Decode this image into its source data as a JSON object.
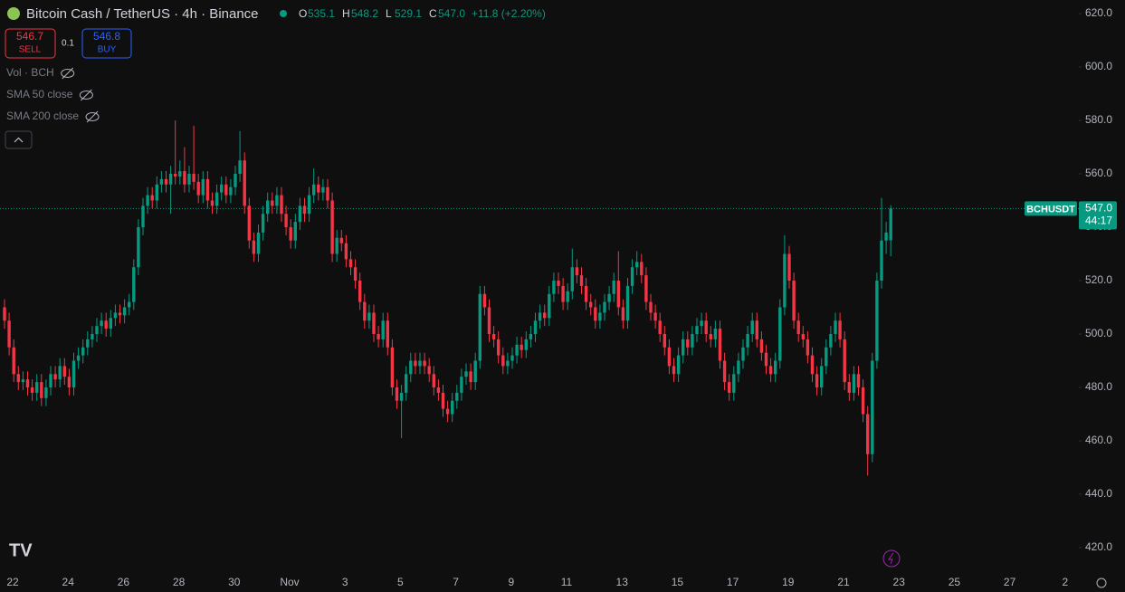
{
  "chart_data": {
    "type": "candlestick",
    "title": "Bitcoin Cash / TetherUS · 4h · Binance",
    "ohlc_legend": [
      {
        "label": "O",
        "value": "535.1"
      },
      {
        "label": "H",
        "value": "548.2"
      },
      {
        "label": "L",
        "value": "529.1"
      },
      {
        "label": "C",
        "value": "547.0"
      }
    ],
    "change": "+11.8 (+2.20%)",
    "sell": {
      "price": "546.7",
      "label": "SELL"
    },
    "spread": "0.1",
    "buy": {
      "price": "546.8",
      "label": "BUY"
    },
    "indicators": [
      "Vol · BCH",
      "SMA 50 close",
      "SMA 200 close"
    ],
    "symbol": "BCHUSDT",
    "last_price": {
      "value": 547.0,
      "label": "547.0"
    },
    "countdown": "44:17",
    "up_color": "#089981",
    "down_color": "#f23645",
    "ylim": [
      420,
      620
    ],
    "yticks": [
      {
        "value": 420,
        "label": "420.0"
      },
      {
        "value": 440,
        "label": "440.0"
      },
      {
        "value": 460,
        "label": "460.0"
      },
      {
        "value": 480,
        "label": "480.0"
      },
      {
        "value": 500,
        "label": "500.0"
      },
      {
        "value": 520,
        "label": "520.0"
      },
      {
        "value": 540,
        "label": "540.0"
      },
      {
        "value": 560,
        "label": "560.0"
      },
      {
        "value": 580,
        "label": "580.0"
      },
      {
        "value": 600,
        "label": "600.0"
      },
      {
        "value": 620,
        "label": "620.0"
      }
    ],
    "xticks": [
      "22",
      "24",
      "26",
      "28",
      "30",
      "Nov",
      "3",
      "5",
      "7",
      "9",
      "11",
      "13",
      "15",
      "17",
      "19",
      "21",
      "23",
      "25",
      "27",
      "2"
    ],
    "open": [
      510,
      505,
      495,
      485,
      482,
      483,
      480,
      478,
      482,
      476,
      480,
      485,
      483,
      488,
      484,
      480,
      490,
      492,
      495,
      498,
      500,
      503,
      505,
      502,
      506,
      508,
      507,
      510,
      512,
      525,
      540,
      548,
      552,
      550,
      556,
      558,
      556,
      560,
      559,
      561,
      556,
      560,
      557,
      552,
      558,
      550,
      548,
      553,
      556,
      552,
      555,
      560,
      565,
      548,
      535,
      530,
      538,
      545,
      550,
      548,
      552,
      545,
      540,
      535,
      542,
      548,
      545,
      552,
      556,
      553,
      555,
      550,
      530,
      536,
      534,
      528,
      525,
      520,
      512,
      505,
      508,
      500,
      498,
      505,
      495,
      480,
      475,
      478,
      485,
      490,
      488,
      490,
      488,
      485,
      480,
      478,
      472,
      470,
      475,
      478,
      484,
      486,
      482,
      490,
      515,
      510,
      500,
      498,
      492,
      488,
      490,
      492,
      496,
      494,
      498,
      500,
      505,
      508,
      506,
      515,
      520,
      518,
      512,
      516,
      525,
      522,
      518,
      512,
      510,
      505,
      508,
      512,
      515,
      520,
      510,
      505,
      518,
      525,
      527,
      522,
      512,
      508,
      505,
      500,
      495,
      488,
      485,
      492,
      498,
      495,
      500,
      503,
      505,
      500,
      498,
      502,
      490,
      482,
      478,
      485,
      490,
      495,
      500,
      505,
      498,
      493,
      488,
      485,
      490,
      510,
      530,
      520,
      505,
      500,
      498,
      492,
      485,
      480,
      488,
      495,
      500,
      505,
      498,
      482,
      478,
      485,
      480,
      470,
      455,
      490,
      520,
      535,
      535.1
    ],
    "high": [
      513,
      508,
      498,
      488,
      486,
      486,
      483,
      485,
      485,
      483,
      488,
      488,
      491,
      491,
      487,
      493,
      495,
      498,
      501,
      503,
      506,
      508,
      508,
      509,
      511,
      511,
      513,
      515,
      528,
      543,
      551,
      555,
      555,
      559,
      561,
      561,
      563,
      580,
      565,
      570,
      563,
      578,
      560,
      561,
      561,
      553,
      556,
      559,
      559,
      558,
      563,
      576,
      568,
      551,
      538,
      541,
      548,
      553,
      553,
      555,
      555,
      548,
      543,
      545,
      551,
      551,
      555,
      562,
      559,
      558,
      558,
      553,
      539,
      539,
      537,
      531,
      528,
      523,
      515,
      511,
      511,
      503,
      508,
      508,
      498,
      483,
      481,
      488,
      493,
      493,
      493,
      493,
      491,
      488,
      483,
      481,
      475,
      478,
      481,
      487,
      489,
      489,
      493,
      518,
      518,
      513,
      503,
      501,
      495,
      493,
      495,
      499,
      499,
      501,
      503,
      508,
      511,
      511,
      518,
      523,
      523,
      521,
      519,
      532,
      528,
      525,
      521,
      515,
      513,
      511,
      515,
      518,
      523,
      531,
      513,
      521,
      528,
      531,
      530,
      525,
      515,
      511,
      508,
      503,
      498,
      491,
      495,
      501,
      501,
      503,
      506,
      508,
      508,
      503,
      505,
      505,
      493,
      485,
      488,
      493,
      498,
      503,
      508,
      508,
      501,
      496,
      491,
      493,
      513,
      537,
      533,
      523,
      508,
      503,
      501,
      495,
      488,
      491,
      498,
      503,
      508,
      508,
      501,
      485,
      488,
      488,
      483,
      473,
      493,
      523,
      551,
      542,
      548.2
    ],
    "low": [
      502,
      492,
      482,
      479,
      479,
      477,
      475,
      475,
      473,
      473,
      477,
      480,
      480,
      481,
      477,
      477,
      487,
      489,
      492,
      495,
      497,
      500,
      499,
      499,
      503,
      504,
      504,
      507,
      509,
      522,
      537,
      545,
      547,
      547,
      553,
      553,
      545,
      556,
      556,
      553,
      553,
      554,
      549,
      549,
      547,
      545,
      545,
      550,
      549,
      549,
      552,
      557,
      545,
      532,
      527,
      527,
      535,
      542,
      545,
      545,
      542,
      537,
      532,
      532,
      539,
      542,
      542,
      549,
      550,
      550,
      547,
      527,
      527,
      531,
      525,
      522,
      517,
      509,
      502,
      502,
      497,
      495,
      495,
      492,
      477,
      472,
      461,
      475,
      482,
      485,
      485,
      485,
      482,
      477,
      475,
      469,
      467,
      467,
      472,
      475,
      481,
      479,
      479,
      487,
      507,
      497,
      495,
      489,
      485,
      485,
      487,
      489,
      491,
      491,
      495,
      497,
      502,
      503,
      503,
      512,
      515,
      509,
      509,
      513,
      519,
      515,
      509,
      507,
      502,
      502,
      505,
      509,
      512,
      507,
      502,
      502,
      515,
      522,
      519,
      509,
      505,
      502,
      497,
      492,
      485,
      482,
      482,
      489,
      492,
      492,
      497,
      500,
      497,
      495,
      495,
      487,
      479,
      475,
      475,
      482,
      487,
      492,
      497,
      495,
      490,
      485,
      482,
      482,
      487,
      507,
      517,
      502,
      497,
      495,
      489,
      482,
      477,
      477,
      485,
      492,
      497,
      495,
      479,
      475,
      475,
      477,
      467,
      447,
      452,
      487,
      517,
      530,
      529.1
    ],
    "close": [
      505,
      495,
      485,
      482,
      483,
      480,
      478,
      482,
      476,
      480,
      485,
      483,
      488,
      484,
      480,
      490,
      492,
      495,
      498,
      500,
      503,
      505,
      502,
      506,
      508,
      507,
      510,
      512,
      525,
      540,
      548,
      552,
      550,
      556,
      558,
      556,
      560,
      559,
      561,
      556,
      560,
      557,
      552,
      558,
      550,
      548,
      553,
      556,
      552,
      555,
      560,
      565,
      548,
      535,
      530,
      538,
      545,
      550,
      548,
      552,
      545,
      540,
      535,
      542,
      548,
      545,
      552,
      556,
      553,
      555,
      550,
      530,
      536,
      534,
      528,
      525,
      520,
      512,
      505,
      508,
      500,
      498,
      505,
      495,
      480,
      475,
      478,
      485,
      490,
      488,
      490,
      488,
      485,
      480,
      478,
      472,
      470,
      475,
      478,
      484,
      486,
      482,
      490,
      515,
      510,
      500,
      498,
      492,
      488,
      490,
      492,
      496,
      494,
      498,
      500,
      505,
      508,
      506,
      515,
      520,
      518,
      512,
      516,
      525,
      522,
      518,
      512,
      510,
      505,
      508,
      512,
      515,
      520,
      510,
      505,
      518,
      525,
      527,
      522,
      512,
      508,
      505,
      500,
      495,
      488,
      485,
      492,
      498,
      495,
      500,
      503,
      505,
      500,
      498,
      502,
      490,
      482,
      478,
      485,
      490,
      495,
      500,
      505,
      498,
      493,
      488,
      485,
      490,
      510,
      530,
      520,
      505,
      500,
      498,
      492,
      485,
      480,
      488,
      495,
      500,
      505,
      498,
      482,
      478,
      485,
      480,
      470,
      455,
      490,
      520,
      535,
      538,
      547.0
    ]
  }
}
